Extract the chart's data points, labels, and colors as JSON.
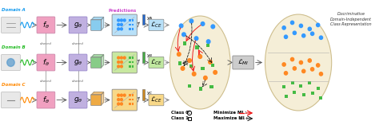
{
  "fig_width": 4.74,
  "fig_height": 1.57,
  "dpi": 100,
  "domain_labels": [
    "Domain A",
    "Domain B",
    "Domain C"
  ],
  "domain_colors": [
    "#1199ee",
    "#22bb22",
    "#ff8800"
  ],
  "f_box_color": "#f0a0c0",
  "g_box_color": "#c0b0e0",
  "pred_box_colors": [
    "#b8e0f8",
    "#c8e8a0",
    "#f8d888"
  ],
  "lce_box_colors": [
    "#b8e0f8",
    "#c0e8a0",
    "#f8d888"
  ],
  "title_text": "Discriminative\nDomain-Independent\nClass Representation",
  "legend_class0_label": "Class 0:",
  "legend_class1_label": "Class 1:",
  "legend_minimize_label": "Minimize MI :",
  "legend_maximize_label": "Maximize MI :",
  "minimize_color": "#ee1111",
  "maximize_color": "#111111",
  "predictions_label": "Predictions",
  "shared_label": "shared",
  "blue_color": "#3399ff",
  "orange_color": "#ff8822",
  "green_color": "#44bb44",
  "ellipse_fill": "#f5eed5",
  "ellipse_edge": "#ccbb88",
  "lmi_fill": "#cccccc",
  "right_ellipse_fill": "#f5eed5"
}
